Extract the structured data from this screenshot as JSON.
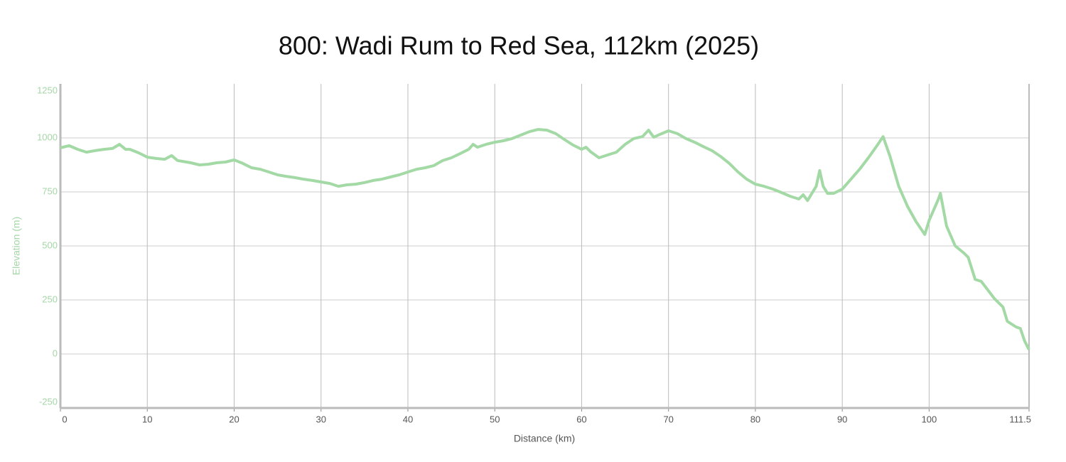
{
  "chart_data": {
    "type": "line",
    "title": "800: Wadi Rum to Red Sea, 112km (2025)",
    "x_label": "Distance (km)",
    "y_label": "Elevation (m)",
    "xlim": [
      0,
      111.5
    ],
    "xticks": [
      0,
      10,
      20,
      30,
      40,
      50,
      60,
      70,
      80,
      90,
      100,
      111.5
    ],
    "ylim": [
      -250,
      1250
    ],
    "yticks": [
      -250,
      0,
      250,
      500,
      750,
      1000,
      1250
    ],
    "grid": true,
    "series": [
      {
        "name": "Elevation",
        "color": "#a3d9a5",
        "x": [
          0,
          1,
          2,
          3,
          4,
          5,
          6,
          6.8,
          7.5,
          8,
          9,
          10,
          11,
          12,
          12.8,
          13.5,
          15,
          16,
          17,
          18,
          19,
          20,
          21,
          22,
          23,
          24,
          25,
          26,
          27,
          28,
          29,
          30,
          31,
          32,
          33,
          34,
          35,
          36,
          37,
          38,
          39,
          40,
          41,
          42,
          43,
          44,
          45,
          46,
          47,
          47.5,
          48,
          49,
          50,
          51,
          52,
          53,
          54,
          55,
          56,
          57,
          58,
          59,
          60,
          60.5,
          61,
          62,
          63,
          64,
          65,
          66,
          67,
          67.7,
          68.3,
          69,
          70,
          71,
          72,
          73,
          74,
          75,
          76,
          77,
          78,
          79,
          80,
          81,
          82,
          83,
          84,
          85,
          85.5,
          86,
          87,
          87.4,
          87.8,
          88.3,
          89,
          90,
          91,
          92,
          93,
          94,
          94.7,
          95.5,
          96.5,
          97.5,
          98.5,
          99.5,
          100,
          101,
          101.3,
          102,
          103,
          104,
          104.5,
          105.3,
          106,
          106.7,
          107.5,
          108.5,
          109,
          110,
          110.5,
          111,
          111.5
        ],
        "values": [
          954,
          964,
          947,
          934,
          941,
          947,
          951,
          970,
          947,
          947,
          931,
          911,
          905,
          901,
          918,
          895,
          885,
          875,
          878,
          885,
          888,
          898,
          882,
          862,
          855,
          842,
          829,
          822,
          816,
          809,
          803,
          796,
          789,
          776,
          783,
          786,
          793,
          803,
          809,
          819,
          829,
          842,
          855,
          862,
          872,
          895,
          908,
          927,
          947,
          970,
          957,
          970,
          980,
          987,
          997,
          1013,
          1029,
          1039,
          1036,
          1020,
          993,
          967,
          947,
          957,
          937,
          908,
          921,
          934,
          970,
          997,
          1006,
          1036,
          1003,
          1016,
          1033,
          1020,
          997,
          980,
          960,
          941,
          914,
          882,
          842,
          809,
          786,
          776,
          763,
          747,
          730,
          717,
          737,
          710,
          776,
          849,
          776,
          743,
          743,
          763,
          809,
          855,
          908,
          964,
          1006,
          914,
          776,
          684,
          612,
          553,
          618,
          710,
          743,
          592,
          500,
          467,
          447,
          345,
          336,
          299,
          257,
          217,
          151,
          125,
          118,
          59,
          20
        ]
      }
    ]
  }
}
